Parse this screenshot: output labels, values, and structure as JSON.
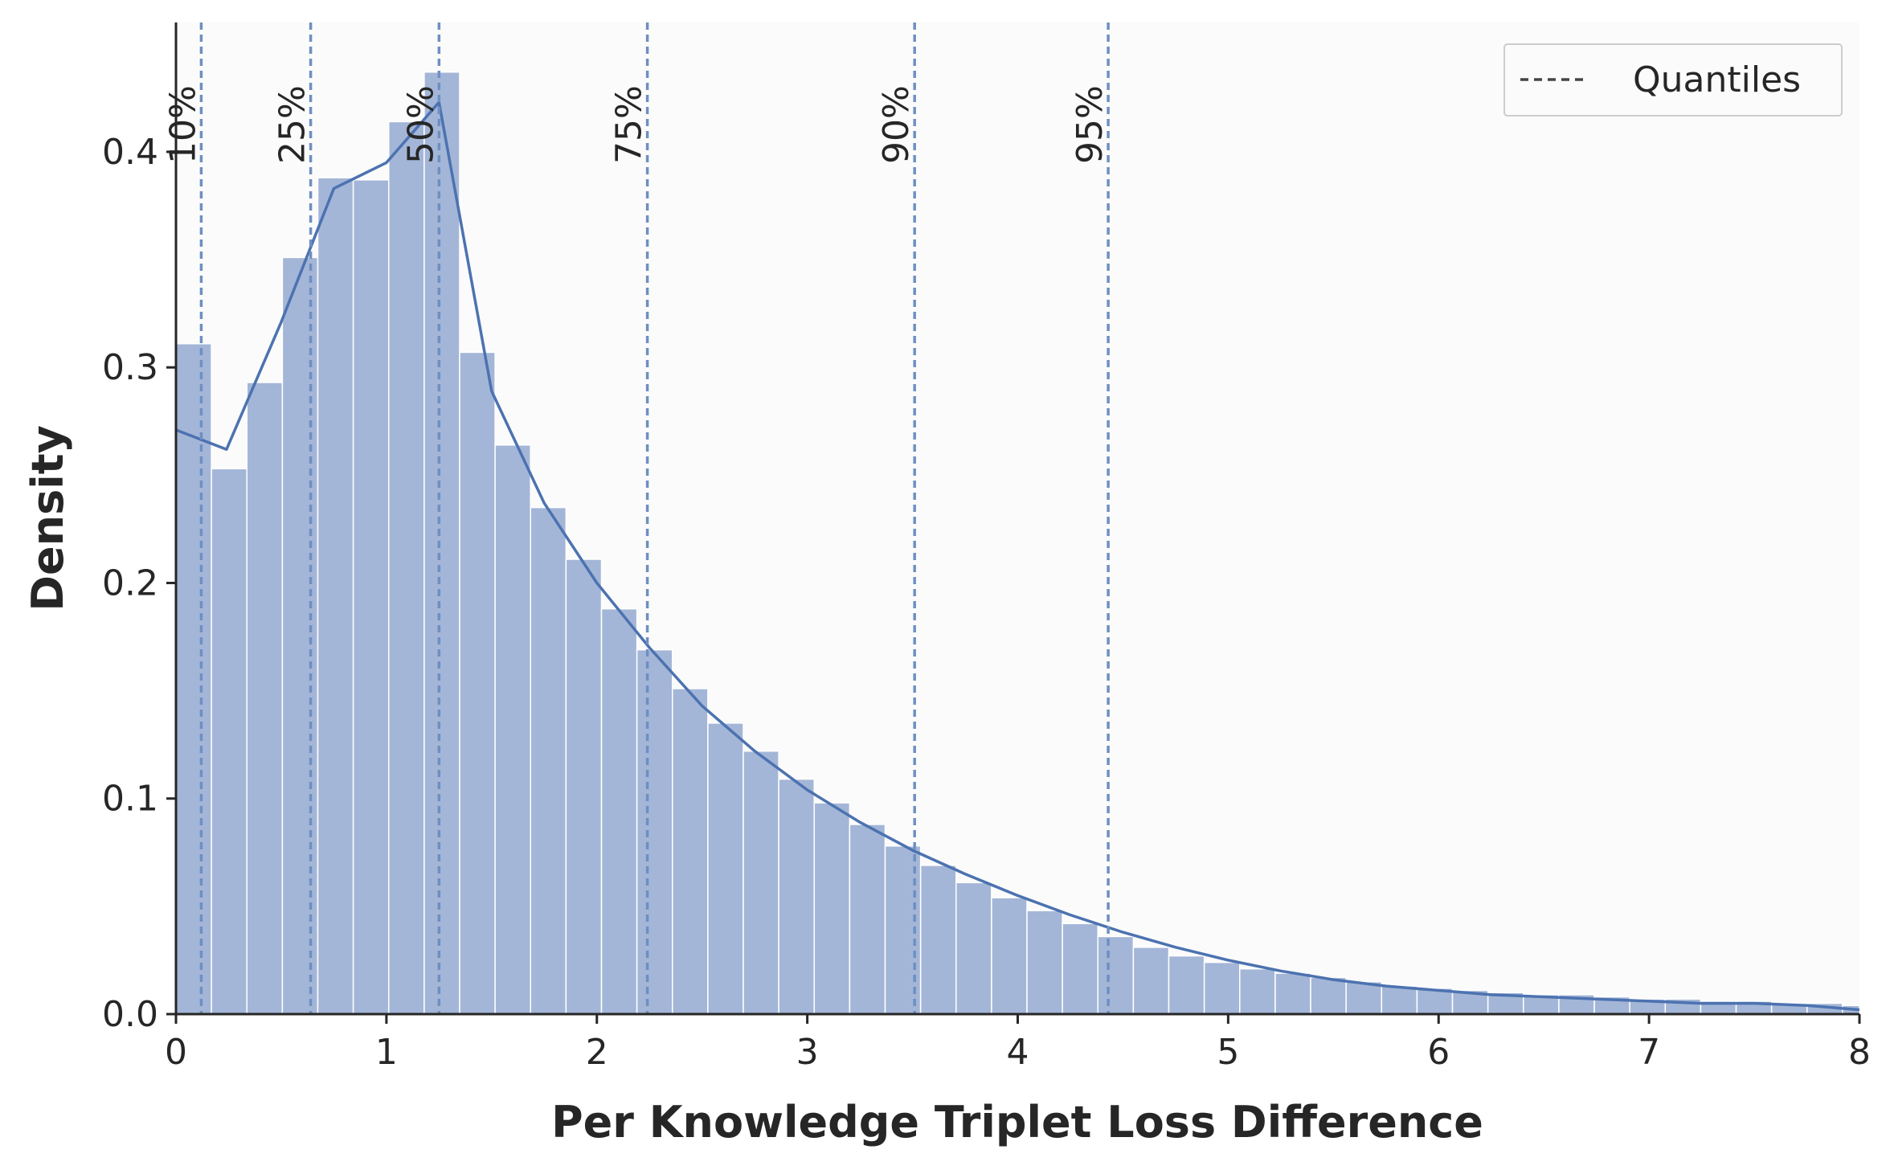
{
  "chart_data": {
    "type": "bar",
    "xlabel": "Per Knowledge Triplet Loss Difference",
    "ylabel": "Density",
    "xlim": [
      0,
      8
    ],
    "ylim": [
      0,
      0.46
    ],
    "xticks": [
      0,
      1,
      2,
      3,
      4,
      5,
      6,
      7,
      8
    ],
    "yticks": [
      0.0,
      0.1,
      0.2,
      0.3,
      0.4
    ],
    "ytick_labels": [
      "0.0",
      "0.1",
      "0.2",
      "0.3",
      "0.4"
    ],
    "grid": false,
    "legend": {
      "position": "top-right",
      "entries": [
        "Quantiles"
      ]
    },
    "colors": {
      "bars": "#a4b6d7",
      "kde": "#4c72b0",
      "quantile": "#6e8fc2",
      "plot_bg": "#fbfbfb",
      "legend_line": "#444444"
    },
    "histogram": {
      "bin_width": 0.1685,
      "densities": [
        0.311,
        0.253,
        0.293,
        0.351,
        0.388,
        0.387,
        0.414,
        0.437,
        0.307,
        0.264,
        0.235,
        0.211,
        0.188,
        0.169,
        0.151,
        0.135,
        0.122,
        0.109,
        0.098,
        0.088,
        0.078,
        0.069,
        0.061,
        0.054,
        0.048,
        0.042,
        0.036,
        0.031,
        0.027,
        0.024,
        0.021,
        0.019,
        0.017,
        0.015,
        0.013,
        0.012,
        0.011,
        0.01,
        0.009,
        0.009,
        0.008,
        0.007,
        0.007,
        0.006,
        0.006,
        0.005,
        0.005,
        0.004
      ]
    },
    "kde": {
      "x": [
        0,
        0.24,
        0.5,
        0.75,
        1.0,
        1.25,
        1.5,
        1.75,
        2.0,
        2.25,
        2.5,
        2.75,
        3.0,
        3.25,
        3.5,
        3.75,
        4.0,
        4.25,
        4.5,
        4.75,
        5.0,
        5.25,
        5.5,
        5.75,
        6.0,
        6.25,
        6.5,
        6.75,
        7.0,
        7.25,
        7.5,
        7.75,
        8.0
      ],
      "y": [
        0.271,
        0.262,
        0.321,
        0.383,
        0.395,
        0.423,
        0.289,
        0.237,
        0.2,
        0.17,
        0.143,
        0.122,
        0.104,
        0.089,
        0.076,
        0.065,
        0.055,
        0.046,
        0.038,
        0.031,
        0.025,
        0.02,
        0.016,
        0.013,
        0.011,
        0.009,
        0.008,
        0.007,
        0.006,
        0.005,
        0.005,
        0.004,
        0.002
      ]
    },
    "quantiles": [
      {
        "label": "10%",
        "value": 0.12
      },
      {
        "label": "25%",
        "value": 0.64
      },
      {
        "label": "50%",
        "value": 1.25
      },
      {
        "label": "75%",
        "value": 2.24
      },
      {
        "label": "90%",
        "value": 3.51
      },
      {
        "label": "95%",
        "value": 4.43
      }
    ]
  }
}
